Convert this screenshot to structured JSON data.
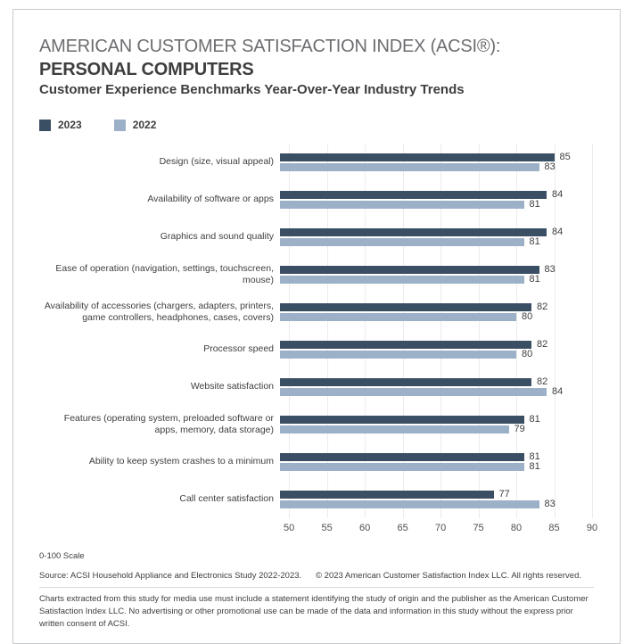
{
  "header": {
    "title_line1": "AMERICAN CUSTOMER SATISFACTION INDEX (ACSI®):",
    "title_line2": "PERSONAL COMPUTERS",
    "title_line3": "Customer Experience Benchmarks Year-Over-Year Industry Trends"
  },
  "chart_data": {
    "type": "bar",
    "orientation": "horizontal",
    "title": "ACSI Personal Computers — Customer Experience Benchmarks Year-Over-Year",
    "categories": [
      "Design (size, visual appeal)",
      "Availability of software or apps",
      "Graphics and sound quality",
      "Ease of operation (navigation, settings, touchscreen, mouse)",
      "Availability of accessories (chargers, adapters, printers, game controllers, headphones, cases, covers)",
      "Processor speed",
      "Website satisfaction",
      "Features (operating system, preloaded software or apps, memory, data storage)",
      "Ability to keep system crashes to a minimum",
      "Call center satisfaction"
    ],
    "series": [
      {
        "name": "2023",
        "color": "#3b4f64",
        "values": [
          85,
          84,
          84,
          83,
          82,
          82,
          82,
          81,
          81,
          77
        ]
      },
      {
        "name": "2022",
        "color": "#9cb0c8",
        "values": [
          83,
          81,
          81,
          81,
          80,
          80,
          84,
          79,
          81,
          83
        ]
      }
    ],
    "xlim": [
      48.8,
      90
    ],
    "ticks": [
      50,
      55,
      60,
      65,
      70,
      75,
      80,
      85,
      90
    ],
    "grid": true,
    "value_labels": true,
    "legend_position": "top-left",
    "scale_note": "0-100 Scale"
  },
  "footer": {
    "scale_note": "0-100 Scale",
    "source": "Source: ACSI Household Appliance and Electronics Study 2022-2023.",
    "copyright": "© 2023 American Customer Satisfaction Index LLC. All rights reserved.",
    "disclaimer": "Charts extracted from this study for media use must include a statement identifying the study of origin and the publisher as the American Customer Satisfaction Index LLC. No advertising or other promotional use can be made of the data and information in this study without the express prior written consent of ACSI."
  }
}
